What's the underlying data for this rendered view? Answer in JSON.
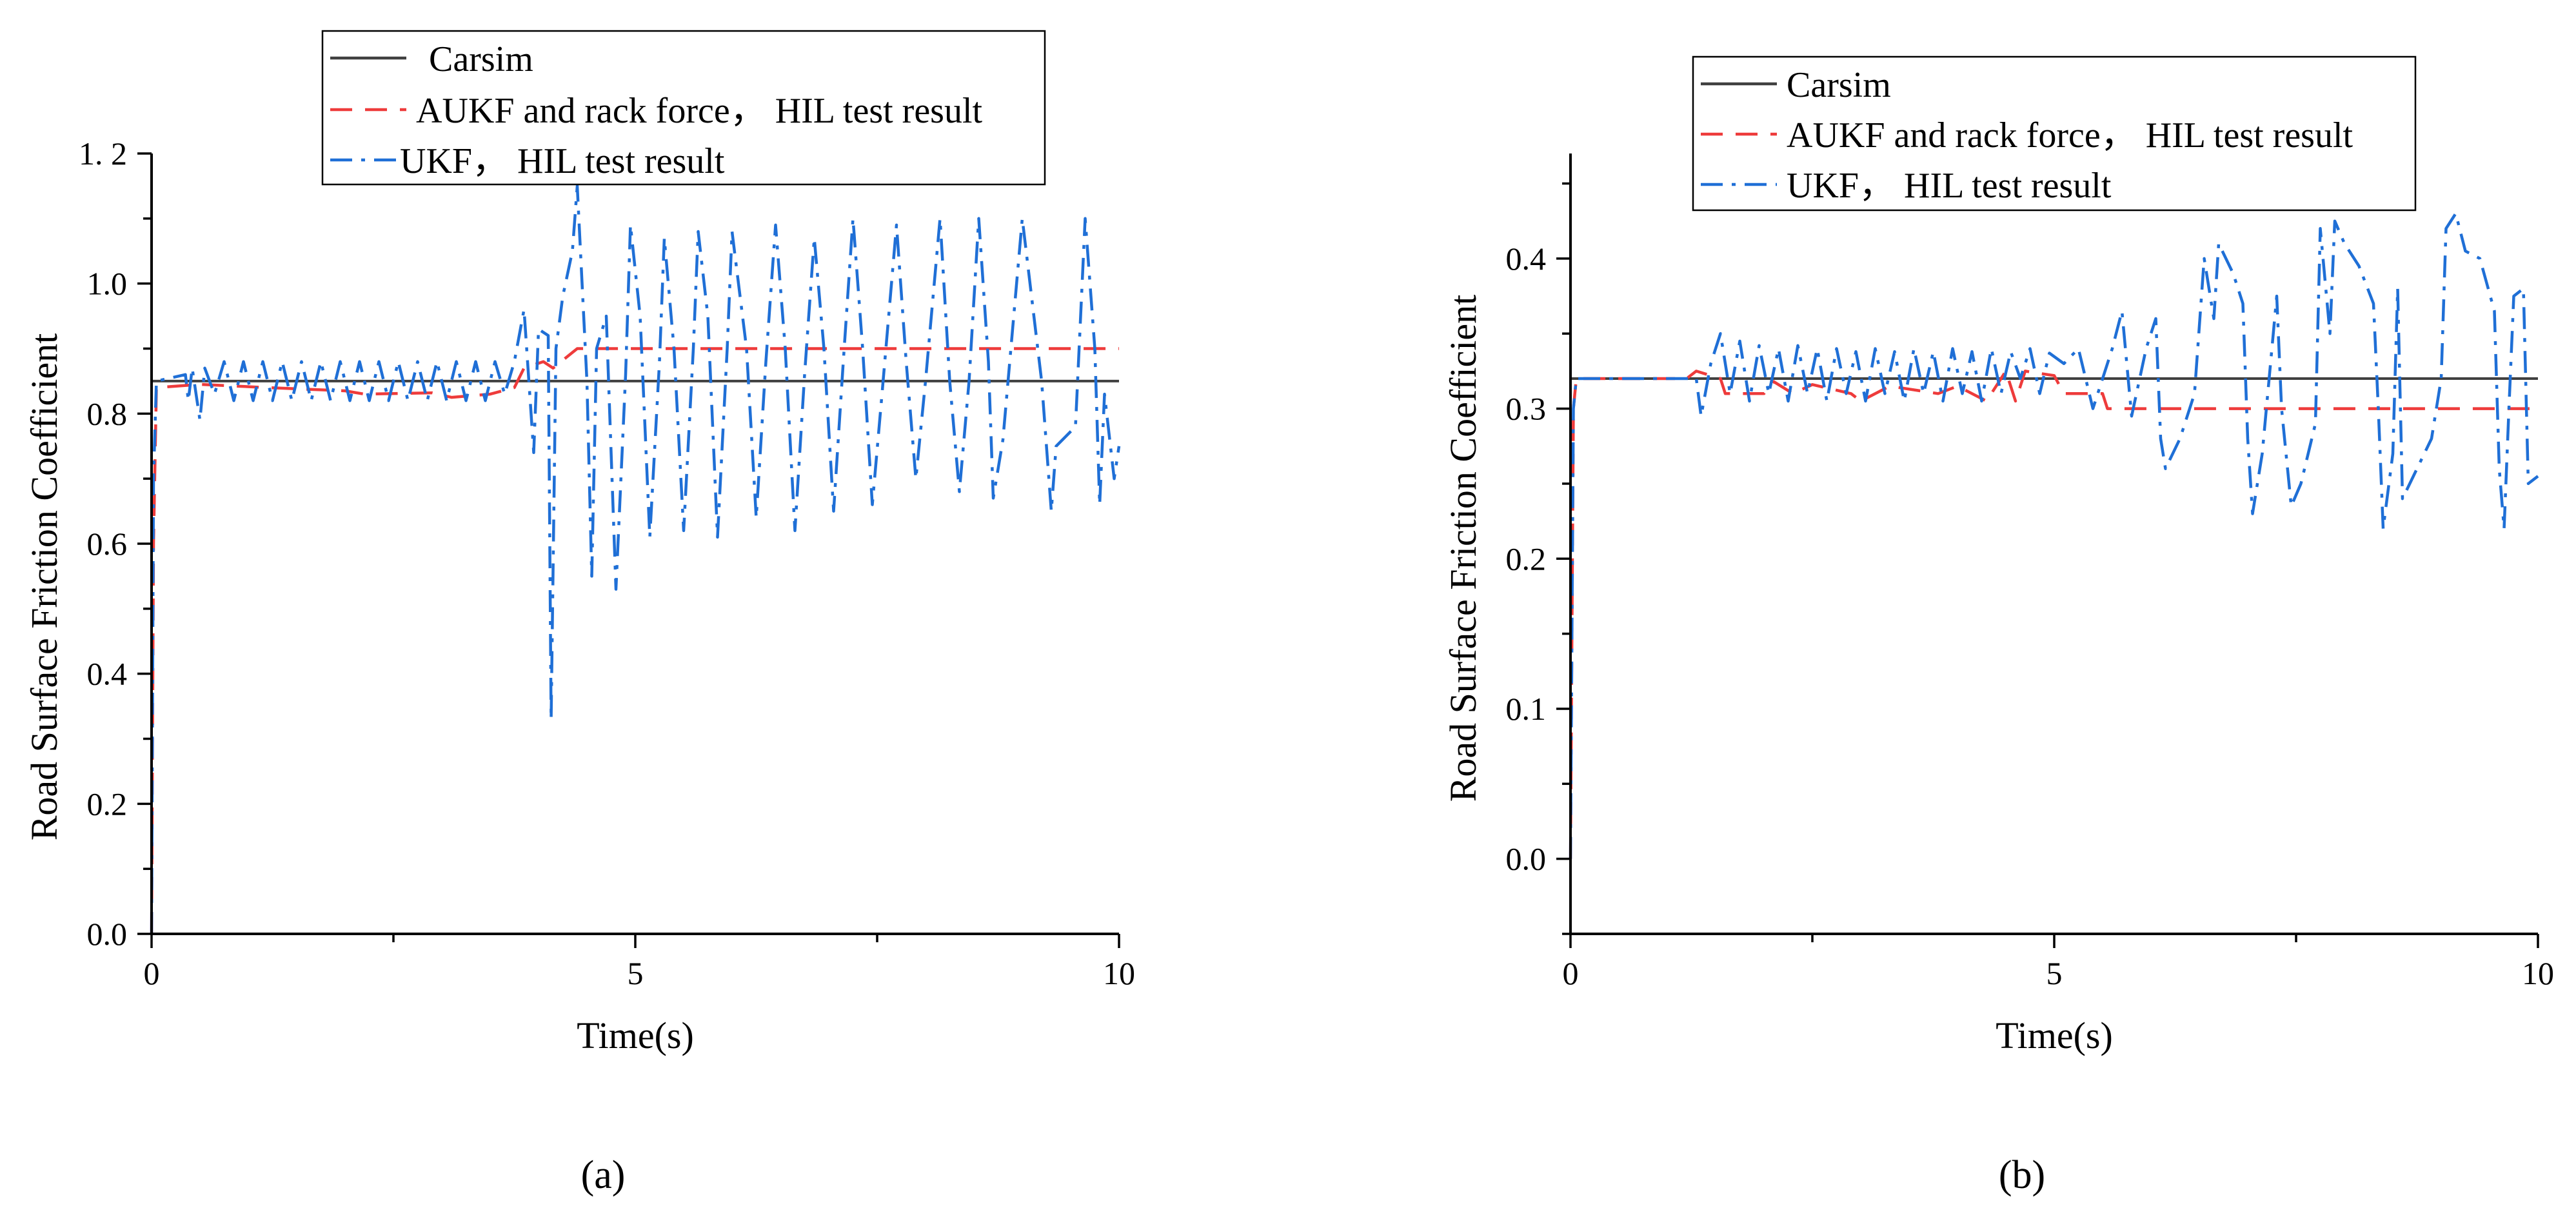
{
  "colors": {
    "carsim": "#404040",
    "aukf": "#ee3b3b",
    "ukf": "#1f6fd6"
  },
  "chart_data": [
    {
      "type": "line",
      "caption": "(a)",
      "xlabel": "Time(s)",
      "ylabel": "Road Surface Friction Coefficient",
      "xlim": [
        0,
        10
      ],
      "ylim": [
        0,
        1.2
      ],
      "xticks": [
        0,
        5,
        10
      ],
      "xtick_labels": [
        "0",
        "5",
        "10"
      ],
      "yticks": [
        0,
        0.2,
        0.4,
        0.6,
        0.8,
        1.0,
        1.2
      ],
      "ytick_labels": [
        "0.0",
        "0.2",
        "0.4",
        "0.6",
        "0.8",
        "1.0",
        "1. 2"
      ],
      "legend_position": "top-right",
      "grid": false,
      "series": [
        {
          "name": "Carsim",
          "style": "solid",
          "color": "#404040",
          "points": [
            [
              0,
              0
            ],
            [
              0,
              0.85
            ],
            [
              10,
              0.85
            ]
          ]
        },
        {
          "name": "AUKF and rack force， HIL test result",
          "style": "dash",
          "color": "#ee3b3b",
          "points": [
            [
              0,
              0
            ],
            [
              0.02,
              0.6
            ],
            [
              0.05,
              0.84
            ],
            [
              0.5,
              0.845
            ],
            [
              1.2,
              0.84
            ],
            [
              2.0,
              0.835
            ],
            [
              2.2,
              0.83
            ],
            [
              2.9,
              0.832
            ],
            [
              3.1,
              0.825
            ],
            [
              3.5,
              0.83
            ],
            [
              3.75,
              0.84
            ],
            [
              3.85,
              0.87
            ],
            [
              4.05,
              0.88
            ],
            [
              4.15,
              0.87
            ],
            [
              4.4,
              0.9
            ],
            [
              10,
              0.9
            ]
          ]
        },
        {
          "name": "UKF， HIL test result",
          "style": "dashdot",
          "color": "#1f6fd6",
          "points": [
            [
              0,
              0
            ],
            [
              0.02,
              0.7
            ],
            [
              0.05,
              0.85
            ],
            [
              0.35,
              0.86
            ],
            [
              0.38,
              0.82
            ],
            [
              0.42,
              0.87
            ],
            [
              0.5,
              0.79
            ],
            [
              0.55,
              0.87
            ],
            [
              0.65,
              0.83
            ],
            [
              0.75,
              0.88
            ],
            [
              0.85,
              0.82
            ],
            [
              0.95,
              0.88
            ],
            [
              1.05,
              0.82
            ],
            [
              1.15,
              0.88
            ],
            [
              1.25,
              0.82
            ],
            [
              1.35,
              0.88
            ],
            [
              1.45,
              0.82
            ],
            [
              1.55,
              0.88
            ],
            [
              1.65,
              0.82
            ],
            [
              1.75,
              0.88
            ],
            [
              1.85,
              0.82
            ],
            [
              1.95,
              0.88
            ],
            [
              2.05,
              0.82
            ],
            [
              2.15,
              0.88
            ],
            [
              2.25,
              0.82
            ],
            [
              2.35,
              0.88
            ],
            [
              2.45,
              0.82
            ],
            [
              2.55,
              0.88
            ],
            [
              2.65,
              0.82
            ],
            [
              2.75,
              0.88
            ],
            [
              2.85,
              0.82
            ],
            [
              2.95,
              0.88
            ],
            [
              3.05,
              0.82
            ],
            [
              3.15,
              0.88
            ],
            [
              3.25,
              0.82
            ],
            [
              3.35,
              0.88
            ],
            [
              3.45,
              0.82
            ],
            [
              3.55,
              0.88
            ],
            [
              3.65,
              0.83
            ],
            [
              3.75,
              0.88
            ],
            [
              3.85,
              0.96
            ],
            [
              3.95,
              0.74
            ],
            [
              4.0,
              0.93
            ],
            [
              4.1,
              0.92
            ],
            [
              4.13,
              0.33
            ],
            [
              4.18,
              0.9
            ],
            [
              4.25,
              0.98
            ],
            [
              4.35,
              1.05
            ],
            [
              4.4,
              1.15
            ],
            [
              4.5,
              0.85
            ],
            [
              4.55,
              0.55
            ],
            [
              4.6,
              0.9
            ],
            [
              4.7,
              0.95
            ],
            [
              4.8,
              0.53
            ],
            [
              4.9,
              0.86
            ],
            [
              4.95,
              1.09
            ],
            [
              5.05,
              0.95
            ],
            [
              5.15,
              0.61
            ],
            [
              5.25,
              0.88
            ],
            [
              5.3,
              1.07
            ],
            [
              5.4,
              0.9
            ],
            [
              5.5,
              0.62
            ],
            [
              5.6,
              0.9
            ],
            [
              5.65,
              1.08
            ],
            [
              5.75,
              0.95
            ],
            [
              5.85,
              0.61
            ],
            [
              5.95,
              0.9
            ],
            [
              6.0,
              1.08
            ],
            [
              6.15,
              0.9
            ],
            [
              6.25,
              0.64
            ],
            [
              6.35,
              0.88
            ],
            [
              6.45,
              1.09
            ],
            [
              6.55,
              0.9
            ],
            [
              6.65,
              0.62
            ],
            [
              6.75,
              0.86
            ],
            [
              6.85,
              1.07
            ],
            [
              6.95,
              0.9
            ],
            [
              7.05,
              0.65
            ],
            [
              7.15,
              0.88
            ],
            [
              7.25,
              1.1
            ],
            [
              7.35,
              0.9
            ],
            [
              7.45,
              0.66
            ],
            [
              7.55,
              0.83
            ],
            [
              7.7,
              1.09
            ],
            [
              7.8,
              0.88
            ],
            [
              7.9,
              0.7
            ],
            [
              8.0,
              0.85
            ],
            [
              8.15,
              1.1
            ],
            [
              8.25,
              0.85
            ],
            [
              8.35,
              0.68
            ],
            [
              8.45,
              0.85
            ],
            [
              8.55,
              1.1
            ],
            [
              8.65,
              0.88
            ],
            [
              8.7,
              0.67
            ],
            [
              8.8,
              0.76
            ],
            [
              9.0,
              1.1
            ],
            [
              9.2,
              0.85
            ],
            [
              9.3,
              0.65
            ],
            [
              9.35,
              0.75
            ],
            [
              9.55,
              0.78
            ],
            [
              9.65,
              1.1
            ],
            [
              9.75,
              0.9
            ],
            [
              9.8,
              0.66
            ],
            [
              9.85,
              0.83
            ],
            [
              9.95,
              0.7
            ],
            [
              10.0,
              0.75
            ]
          ]
        }
      ]
    },
    {
      "type": "line",
      "caption": "(b)",
      "xlabel": "Time(s)",
      "ylabel": "Road Surface Friction Coefficient",
      "xlim": [
        0,
        10
      ],
      "ylim": [
        -0.05,
        0.47
      ],
      "xticks": [
        0,
        5,
        10
      ],
      "xtick_labels": [
        "0",
        "5",
        "10"
      ],
      "yticks": [
        0,
        0.1,
        0.2,
        0.3,
        0.4
      ],
      "ytick_labels": [
        "0.0",
        "0.1",
        "0.2",
        "0.3",
        "0.4"
      ],
      "legend_position": "top-right",
      "grid": false,
      "series": [
        {
          "name": "Carsim",
          "style": "solid",
          "color": "#404040",
          "points": [
            [
              0,
              0
            ],
            [
              0,
              0.32
            ],
            [
              10,
              0.32
            ]
          ]
        },
        {
          "name": "AUKF and rack force， HIL test result",
          "style": "dash",
          "color": "#ee3b3b",
          "points": [
            [
              0,
              0
            ],
            [
              0.03,
              0.3
            ],
            [
              0.06,
              0.32
            ],
            [
              1.2,
              0.32
            ],
            [
              1.3,
              0.325
            ],
            [
              1.55,
              0.32
            ],
            [
              1.6,
              0.31
            ],
            [
              2.0,
              0.31
            ],
            [
              2.1,
              0.318
            ],
            [
              2.3,
              0.31
            ],
            [
              2.5,
              0.316
            ],
            [
              2.9,
              0.31
            ],
            [
              3.0,
              0.305
            ],
            [
              3.3,
              0.315
            ],
            [
              3.8,
              0.31
            ],
            [
              4.0,
              0.315
            ],
            [
              4.3,
              0.305
            ],
            [
              4.5,
              0.325
            ],
            [
              4.6,
              0.305
            ],
            [
              4.7,
              0.325
            ],
            [
              5.0,
              0.322
            ],
            [
              5.1,
              0.31
            ],
            [
              5.5,
              0.31
            ],
            [
              5.55,
              0.3
            ],
            [
              10,
              0.3
            ]
          ]
        },
        {
          "name": "UKF， HIL test result",
          "style": "dashdot",
          "color": "#1f6fd6",
          "points": [
            [
              0,
              0
            ],
            [
              0.03,
              0.3
            ],
            [
              0.06,
              0.32
            ],
            [
              1.3,
              0.32
            ],
            [
              1.35,
              0.295
            ],
            [
              1.45,
              0.33
            ],
            [
              1.55,
              0.35
            ],
            [
              1.65,
              0.31
            ],
            [
              1.75,
              0.345
            ],
            [
              1.85,
              0.305
            ],
            [
              1.95,
              0.342
            ],
            [
              2.05,
              0.31
            ],
            [
              2.15,
              0.34
            ],
            [
              2.25,
              0.305
            ],
            [
              2.35,
              0.342
            ],
            [
              2.45,
              0.31
            ],
            [
              2.55,
              0.34
            ],
            [
              2.65,
              0.305
            ],
            [
              2.75,
              0.34
            ],
            [
              2.85,
              0.31
            ],
            [
              2.95,
              0.338
            ],
            [
              3.05,
              0.305
            ],
            [
              3.15,
              0.34
            ],
            [
              3.25,
              0.31
            ],
            [
              3.35,
              0.338
            ],
            [
              3.45,
              0.305
            ],
            [
              3.55,
              0.34
            ],
            [
              3.65,
              0.31
            ],
            [
              3.75,
              0.338
            ],
            [
              3.85,
              0.305
            ],
            [
              3.95,
              0.34
            ],
            [
              4.05,
              0.31
            ],
            [
              4.15,
              0.338
            ],
            [
              4.25,
              0.305
            ],
            [
              4.35,
              0.34
            ],
            [
              4.45,
              0.31
            ],
            [
              4.55,
              0.338
            ],
            [
              4.65,
              0.32
            ],
            [
              4.75,
              0.34
            ],
            [
              4.85,
              0.31
            ],
            [
              4.95,
              0.337
            ],
            [
              5.1,
              0.33
            ],
            [
              5.25,
              0.34
            ],
            [
              5.4,
              0.3
            ],
            [
              5.6,
              0.34
            ],
            [
              5.7,
              0.365
            ],
            [
              5.8,
              0.295
            ],
            [
              5.95,
              0.34
            ],
            [
              6.05,
              0.36
            ],
            [
              6.1,
              0.28
            ],
            [
              6.15,
              0.26
            ],
            [
              6.3,
              0.28
            ],
            [
              6.45,
              0.31
            ],
            [
              6.55,
              0.4
            ],
            [
              6.65,
              0.36
            ],
            [
              6.7,
              0.41
            ],
            [
              6.85,
              0.39
            ],
            [
              6.95,
              0.37
            ],
            [
              7.0,
              0.28
            ],
            [
              7.05,
              0.23
            ],
            [
              7.15,
              0.27
            ],
            [
              7.3,
              0.375
            ],
            [
              7.35,
              0.3
            ],
            [
              7.45,
              0.235
            ],
            [
              7.55,
              0.25
            ],
            [
              7.7,
              0.29
            ],
            [
              7.75,
              0.42
            ],
            [
              7.85,
              0.35
            ],
            [
              7.9,
              0.425
            ],
            [
              8.0,
              0.41
            ],
            [
              8.15,
              0.395
            ],
            [
              8.3,
              0.37
            ],
            [
              8.35,
              0.3
            ],
            [
              8.4,
              0.22
            ],
            [
              8.5,
              0.27
            ],
            [
              8.55,
              0.38
            ],
            [
              8.6,
              0.24
            ],
            [
              8.75,
              0.26
            ],
            [
              8.9,
              0.28
            ],
            [
              9.0,
              0.32
            ],
            [
              9.05,
              0.42
            ],
            [
              9.15,
              0.43
            ],
            [
              9.25,
              0.405
            ],
            [
              9.4,
              0.4
            ],
            [
              9.55,
              0.365
            ],
            [
              9.6,
              0.26
            ],
            [
              9.65,
              0.22
            ],
            [
              9.7,
              0.3
            ],
            [
              9.75,
              0.375
            ],
            [
              9.85,
              0.38
            ],
            [
              9.9,
              0.25
            ],
            [
              10.0,
              0.255
            ]
          ]
        }
      ]
    }
  ]
}
